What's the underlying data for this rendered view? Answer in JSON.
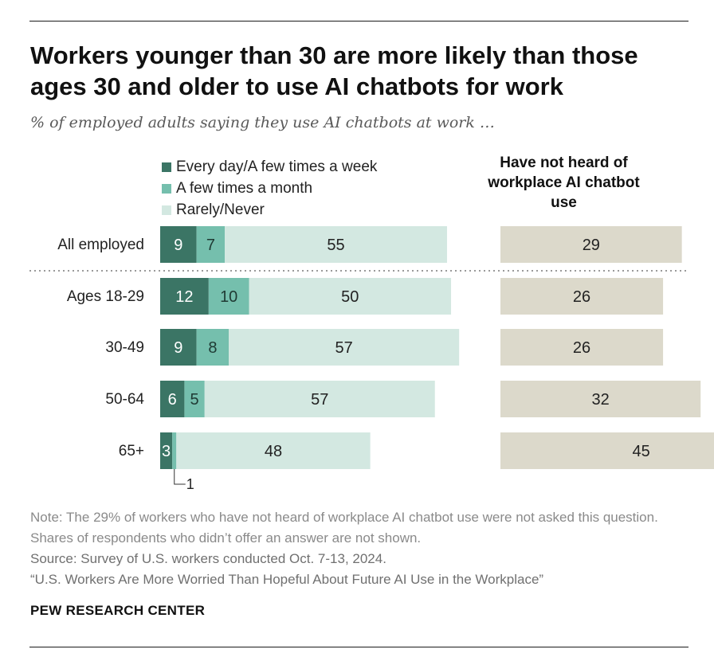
{
  "title": "Workers younger than 30 are more likely than those ages 30 and older to use AI chatbots for work",
  "subtitle": "% of employed adults saying they use AI chatbots at work …",
  "chart_data": {
    "type": "bar",
    "orientation": "horizontal",
    "stacked": true,
    "categories": [
      "All employed",
      "Ages 18-29",
      "30-49",
      "50-64",
      "65+"
    ],
    "series": [
      {
        "name": "Every day/A few times a week",
        "values": [
          9,
          12,
          9,
          6,
          3
        ],
        "color": "#3b7565"
      },
      {
        "name": "A few times a month",
        "values": [
          7,
          10,
          8,
          5,
          1
        ],
        "color": "#75bfad"
      },
      {
        "name": "Rarely/Never",
        "values": [
          55,
          50,
          57,
          57,
          48
        ],
        "color": "#d3e8e1"
      }
    ],
    "right_panel": {
      "title": "Have not heard of workplace AI chatbot use",
      "values": [
        29,
        26,
        26,
        32,
        45
      ],
      "color": "#dcd9cb"
    },
    "callout": {
      "category": "65+",
      "series": "A few times a month",
      "label": "1"
    },
    "legend_position": "top-left"
  },
  "notes": {
    "note": "Note: The 29% of workers who have not heard of workplace AI chatbot use were not asked this question. Shares of respondents who didn’t offer an answer are not shown.",
    "source": "Source: Survey of U.S. workers conducted Oct. 7-13, 2024.",
    "report": "“U.S. Workers Are More Worried Than Hopeful About Future AI Use in the Workplace”"
  },
  "brand": "PEW RESEARCH CENTER"
}
